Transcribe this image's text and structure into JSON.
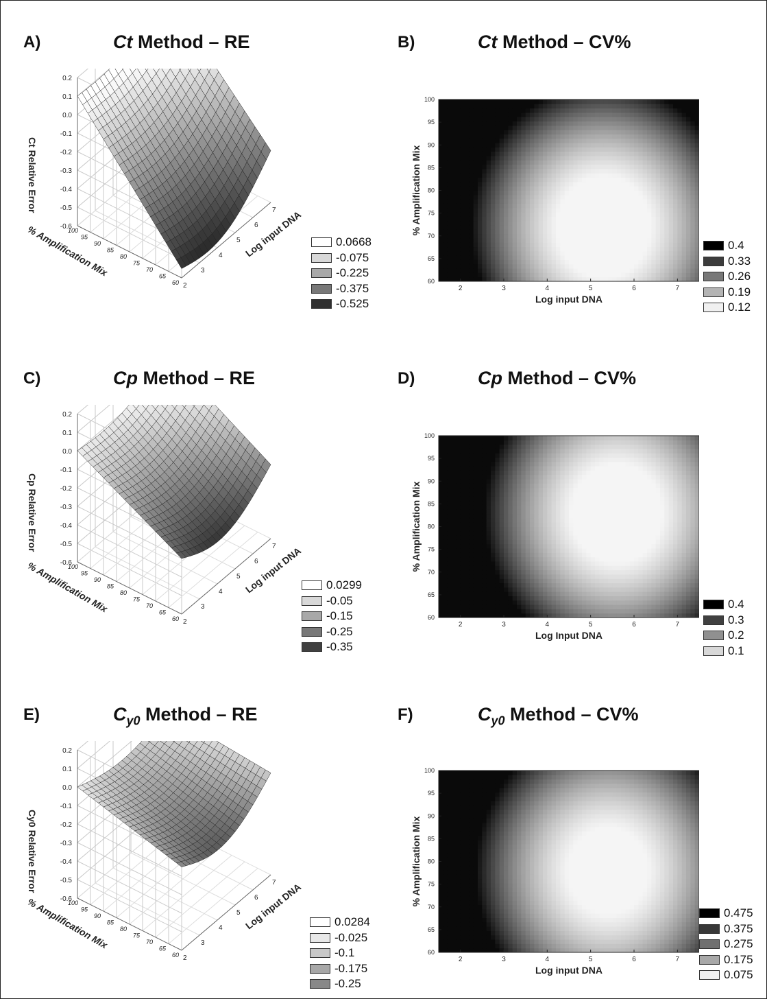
{
  "chart_data": [
    {
      "id": "A",
      "type": "surface3d",
      "panel_label": "A)",
      "title_italic": "Ct",
      "title_rest": " Method – RE",
      "zlabel": "Ct Relative Error",
      "xlabel": "Log input DNA",
      "ylabel": "% Amplification Mix",
      "z_ticks": [
        "0.2",
        "0.1",
        "0.0",
        "-0.1",
        "-0.2",
        "-0.3",
        "-0.4",
        "-0.5",
        "-0.6"
      ],
      "x_ticks": [
        "2",
        "3",
        "4",
        "5",
        "6",
        "7"
      ],
      "y_ticks": [
        "100",
        "95",
        "90",
        "85",
        "80",
        "75",
        "70",
        "65",
        "60"
      ],
      "legend": [
        {
          "label": "0.0668",
          "color": "#ffffff"
        },
        {
          "label": "-0.075",
          "color": "#d8d8d8"
        },
        {
          "label": "-0.225",
          "color": "#a8a8a8"
        },
        {
          "label": "-0.375",
          "color": "#787878"
        },
        {
          "label": "-0.525",
          "color": "#303030"
        }
      ],
      "surface": {
        "corner_100_2": 0.1,
        "corner_100_7": 0.25,
        "corner_60_2": -0.55,
        "corner_60_7": -0.32
      }
    },
    {
      "id": "B",
      "type": "contour",
      "panel_label": "B)",
      "title_italic": "Ct",
      "title_rest": " Method – CV%",
      "xlabel": "Log input DNA",
      "ylabel": "% Amplification Mix",
      "x_ticks": [
        "2",
        "3",
        "4",
        "5",
        "6",
        "7"
      ],
      "y_ticks": [
        "100",
        "95",
        "90",
        "85",
        "80",
        "75",
        "70",
        "65",
        "60"
      ],
      "xlim": [
        1.5,
        7.5
      ],
      "ylim": [
        60,
        100
      ],
      "legend": [
        {
          "label": "0.4",
          "color": "#000000"
        },
        {
          "label": "0.33",
          "color": "#3c3c3c"
        },
        {
          "label": "0.26",
          "color": "#787878"
        },
        {
          "label": "0.19",
          "color": "#b4b4b4"
        },
        {
          "label": "0.12",
          "color": "#f0f0f0"
        }
      ],
      "minimum": {
        "x": 5.3,
        "y": 72
      }
    },
    {
      "id": "C",
      "type": "surface3d",
      "panel_label": "C)",
      "title_italic": "Cp",
      "title_rest": " Method – RE",
      "zlabel": "Cp Relative Error",
      "xlabel": "Log input DNA",
      "ylabel": "% Amplification Mix",
      "z_ticks": [
        "0.2",
        "0.1",
        "0.0",
        "-0.1",
        "-0.2",
        "-0.3",
        "-0.4",
        "-0.5",
        "-0.6"
      ],
      "x_ticks": [
        "2",
        "3",
        "4",
        "5",
        "6",
        "7"
      ],
      "y_ticks": [
        "100",
        "95",
        "90",
        "85",
        "80",
        "75",
        "70",
        "65",
        "60"
      ],
      "legend": [
        {
          "label": "0.0299",
          "color": "#ffffff"
        },
        {
          "label": "-0.05",
          "color": "#d8d8d8"
        },
        {
          "label": "-0.15",
          "color": "#a8a8a8"
        },
        {
          "label": "-0.25",
          "color": "#787878"
        },
        {
          "label": "-0.35",
          "color": "#404040"
        }
      ],
      "surface": {
        "corner_100_2": 0.0,
        "corner_100_7": 0.12,
        "corner_60_2": -0.3,
        "corner_60_7": -0.2
      }
    },
    {
      "id": "D",
      "type": "contour",
      "panel_label": "D)",
      "title_italic": "Cp",
      "title_rest": " Method – CV%",
      "xlabel": "Log Input DNA",
      "ylabel": "% Amplification Mix",
      "x_ticks": [
        "2",
        "3",
        "4",
        "5",
        "6",
        "7"
      ],
      "y_ticks": [
        "100",
        "95",
        "90",
        "85",
        "80",
        "75",
        "70",
        "65",
        "60"
      ],
      "xlim": [
        1.5,
        7.5
      ],
      "ylim": [
        60,
        100
      ],
      "legend": [
        {
          "label": "0.4",
          "color": "#000000"
        },
        {
          "label": "0.3",
          "color": "#404040"
        },
        {
          "label": "0.2",
          "color": "#909090"
        },
        {
          "label": "0.1",
          "color": "#d8d8d8"
        }
      ],
      "minimum": {
        "x": 5.6,
        "y": 83
      }
    },
    {
      "id": "E",
      "type": "surface3d",
      "panel_label": "E)",
      "title_italic": "C",
      "title_sub": "y0",
      "title_rest": " Method – RE",
      "zlabel": "Cy0 Relative Error",
      "xlabel": "Log input DNA",
      "ylabel": "% Amplification Mix",
      "z_ticks": [
        "0.2",
        "0.1",
        "0.0",
        "-0.1",
        "-0.2",
        "-0.3",
        "-0.4",
        "-0.5",
        "-0.6"
      ],
      "x_ticks": [
        "2",
        "3",
        "4",
        "5",
        "6",
        "7"
      ],
      "y_ticks": [
        "100",
        "95",
        "90",
        "85",
        "80",
        "75",
        "70",
        "65",
        "60"
      ],
      "legend": [
        {
          "label": "0.0284",
          "color": "#ffffff"
        },
        {
          "label": "-0.025",
          "color": "#e8e8e8"
        },
        {
          "label": "-0.1",
          "color": "#c8c8c8"
        },
        {
          "label": "-0.175",
          "color": "#a8a8a8"
        },
        {
          "label": "-0.25",
          "color": "#888888"
        }
      ],
      "surface": {
        "corner_100_2": 0.0,
        "corner_100_7": 0.0,
        "corner_60_2": -0.15,
        "corner_60_7": -0.05
      }
    },
    {
      "id": "F",
      "type": "contour",
      "panel_label": "F)",
      "title_italic": "C",
      "title_sub": "y0",
      "title_rest": " Method – CV%",
      "xlabel": "Log input DNA",
      "ylabel": "% Amplification Mix",
      "x_ticks": [
        "2",
        "3",
        "4",
        "5",
        "6",
        "7"
      ],
      "y_ticks": [
        "100",
        "95",
        "90",
        "85",
        "80",
        "75",
        "70",
        "65",
        "60"
      ],
      "xlim": [
        1.5,
        7.5
      ],
      "ylim": [
        60,
        100
      ],
      "legend": [
        {
          "label": "0.475",
          "color": "#000000"
        },
        {
          "label": "0.375",
          "color": "#383838"
        },
        {
          "label": "0.275",
          "color": "#707070"
        },
        {
          "label": "0.175",
          "color": "#a8a8a8"
        },
        {
          "label": "0.075",
          "color": "#f0f0f0"
        }
      ],
      "minimum": {
        "x": 5.4,
        "y": 78
      }
    }
  ]
}
